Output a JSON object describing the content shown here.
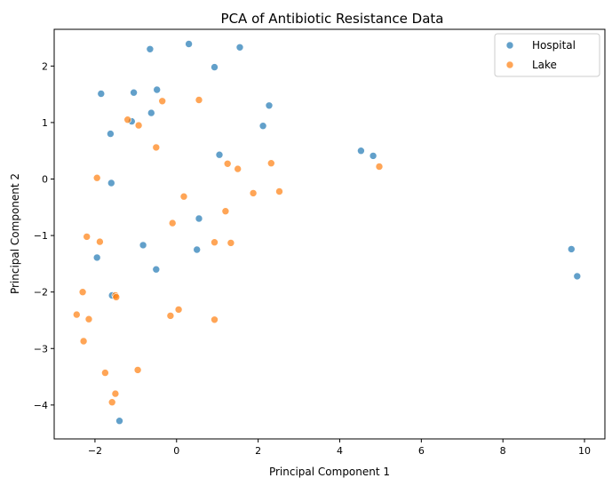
{
  "chart_data": {
    "type": "scatter",
    "title": "PCA of Antibiotic Resistance Data",
    "xlabel": "Principal Component 1",
    "ylabel": "Principal Component 2",
    "xlim": [
      -3.0,
      10.5
    ],
    "ylim": [
      -4.6,
      2.65
    ],
    "xticks": [
      -2,
      0,
      2,
      4,
      6,
      8,
      10
    ],
    "yticks": [
      -4,
      -3,
      -2,
      -1,
      0,
      1,
      2
    ],
    "grid": false,
    "legend_position": "top-right",
    "series": [
      {
        "name": "Hospital",
        "color": "#1f77b4",
        "points": [
          {
            "x": -0.65,
            "y": 2.3
          },
          {
            "x": 0.3,
            "y": 2.39
          },
          {
            "x": 1.55,
            "y": 2.33
          },
          {
            "x": 0.93,
            "y": 1.98
          },
          {
            "x": -1.85,
            "y": 1.51
          },
          {
            "x": -1.05,
            "y": 1.53
          },
          {
            "x": -0.48,
            "y": 1.58
          },
          {
            "x": 2.27,
            "y": 1.3
          },
          {
            "x": -0.62,
            "y": 1.17
          },
          {
            "x": -1.1,
            "y": 1.02
          },
          {
            "x": 2.12,
            "y": 0.94
          },
          {
            "x": -1.62,
            "y": 0.8
          },
          {
            "x": 1.05,
            "y": 0.43
          },
          {
            "x": 4.52,
            "y": 0.5
          },
          {
            "x": 4.82,
            "y": 0.41
          },
          {
            "x": -1.6,
            "y": -0.07
          },
          {
            "x": 0.55,
            "y": -0.7
          },
          {
            "x": -0.82,
            "y": -1.17
          },
          {
            "x": 0.5,
            "y": -1.25
          },
          {
            "x": -1.95,
            "y": -1.39
          },
          {
            "x": -0.5,
            "y": -1.6
          },
          {
            "x": -1.58,
            "y": -2.06
          },
          {
            "x": -1.4,
            "y": -4.28
          },
          {
            "x": 9.68,
            "y": -1.24
          },
          {
            "x": 9.82,
            "y": -1.72
          }
        ]
      },
      {
        "name": "Lake",
        "color": "#ff7f0e",
        "points": [
          {
            "x": -1.2,
            "y": 1.05
          },
          {
            "x": -0.93,
            "y": 0.95
          },
          {
            "x": -0.35,
            "y": 1.38
          },
          {
            "x": 0.55,
            "y": 1.4
          },
          {
            "x": -0.5,
            "y": 0.56
          },
          {
            "x": 1.25,
            "y": 0.27
          },
          {
            "x": 1.5,
            "y": 0.18
          },
          {
            "x": 2.32,
            "y": 0.28
          },
          {
            "x": 4.97,
            "y": 0.22
          },
          {
            "x": -1.95,
            "y": 0.02
          },
          {
            "x": 0.18,
            "y": -0.31
          },
          {
            "x": 1.88,
            "y": -0.25
          },
          {
            "x": 2.52,
            "y": -0.22
          },
          {
            "x": -0.1,
            "y": -0.78
          },
          {
            "x": 1.2,
            "y": -0.57
          },
          {
            "x": -2.2,
            "y": -1.02
          },
          {
            "x": -1.88,
            "y": -1.11
          },
          {
            "x": 0.93,
            "y": -1.12
          },
          {
            "x": 1.33,
            "y": -1.13
          },
          {
            "x": -2.3,
            "y": -2.0
          },
          {
            "x": -1.5,
            "y": -2.06
          },
          {
            "x": -1.48,
            "y": -2.09
          },
          {
            "x": 0.05,
            "y": -2.31
          },
          {
            "x": -0.15,
            "y": -2.42
          },
          {
            "x": -2.45,
            "y": -2.4
          },
          {
            "x": -2.15,
            "y": -2.48
          },
          {
            "x": 0.93,
            "y": -2.49
          },
          {
            "x": -2.28,
            "y": -2.87
          },
          {
            "x": -1.75,
            "y": -3.43
          },
          {
            "x": -0.95,
            "y": -3.38
          },
          {
            "x": -1.5,
            "y": -3.8
          },
          {
            "x": -1.58,
            "y": -3.95
          }
        ]
      }
    ]
  }
}
